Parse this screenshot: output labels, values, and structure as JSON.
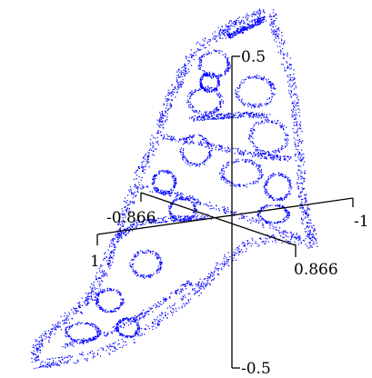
{
  "chart_data": {
    "type": "scatter",
    "projection": "3d",
    "title": "",
    "xlabel": "",
    "ylabel": "",
    "zlabel": "",
    "axes": {
      "x": {
        "range": [
          -1,
          1
        ],
        "ticks": [
          {
            "value": -1,
            "label": "-1"
          },
          {
            "value": 1,
            "label": "1"
          }
        ]
      },
      "y": {
        "range": [
          -0.866,
          0.866
        ],
        "ticks": [
          {
            "value": -0.866,
            "label": "-0.866"
          },
          {
            "value": 0.866,
            "label": "0.866"
          }
        ]
      },
      "z": {
        "range": [
          -0.5,
          0.5
        ],
        "ticks": [
          {
            "value": 0.5,
            "label": "0.5"
          },
          {
            "value": -0.5,
            "label": "-0.5"
          }
        ]
      }
    },
    "grid": false,
    "legend": "none",
    "series": [
      {
        "color": "#0000ff",
        "description_shape": "dense fractal point cloud rising steeply from bottom-left (low z) to top (high z), sparse interior loops"
      }
    ]
  },
  "colors": {
    "points": "#0000ff",
    "axes": "#000000",
    "background": "#ffffff"
  }
}
